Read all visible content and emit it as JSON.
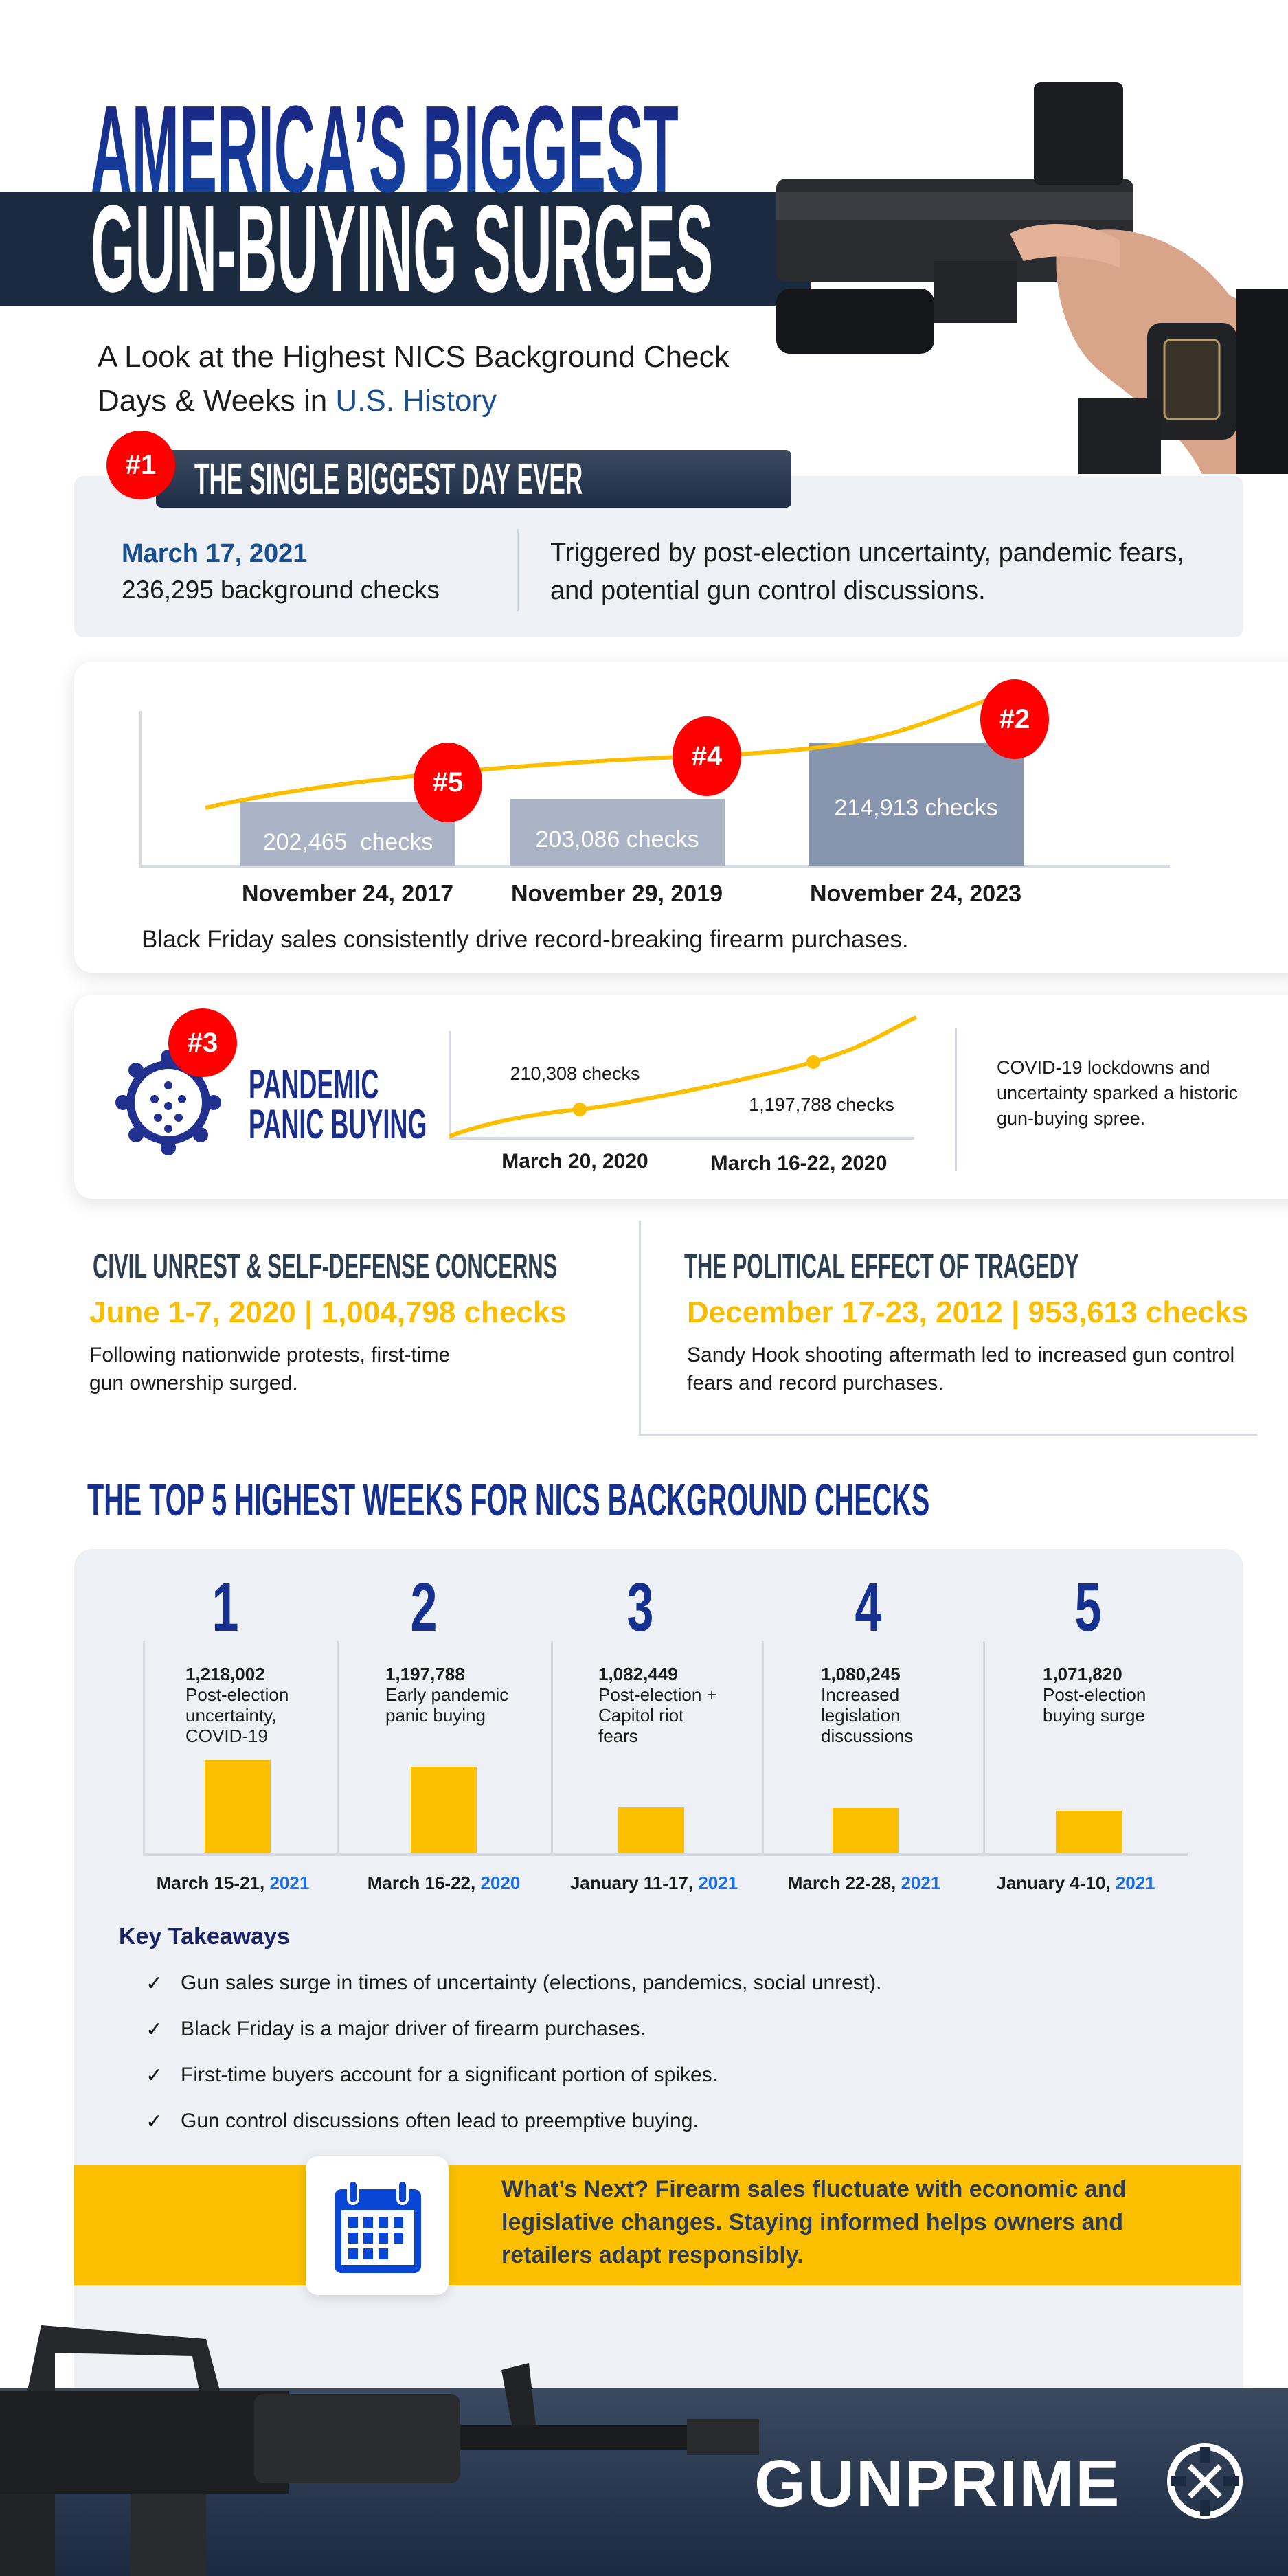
{
  "header": {
    "title_line1": "AMERICA’S BIGGEST",
    "title_line2": "GUN-BUYING SURGES",
    "subtitle_line1": "A Look at the Highest NICS Background Check",
    "subtitle_line2_prefix": "Days & Weeks in ",
    "subtitle_highlight": "U.S. History"
  },
  "biggest_day": {
    "rank": "#1",
    "heading": "THE SINGLE BIGGEST DAY EVER",
    "date": "March 17, 2021",
    "checks": "236,295 background checks",
    "description": "Triggered by post-election uncertainty, pandemic fears, and potential gun control discussions."
  },
  "black_friday": {
    "items": [
      {
        "rank": "#5",
        "label": "202,465  checks",
        "value": 202465,
        "date": "November 24, 2017"
      },
      {
        "rank": "#4",
        "label": "203,086 checks",
        "value": 203086,
        "date": "November 29, 2019"
      },
      {
        "rank": "#2",
        "label": "214,913 checks",
        "value": 214913,
        "date": "November 24, 2023"
      }
    ],
    "caption": "Black Friday sales consistently drive record-breaking firearm purchases."
  },
  "pandemic": {
    "rank": "#3",
    "icon": "virus-icon",
    "title_line1": "PANDEMIC",
    "title_line2": "PANIC BUYING",
    "points": [
      {
        "label": "210,308 checks",
        "date": "March 20, 2020"
      },
      {
        "label": "1,197,788 checks",
        "date": "March 16-22, 2020"
      }
    ],
    "description": "COVID-19 lockdowns and uncertainty sparked a historic gun-buying spree."
  },
  "civil_unrest": {
    "heading": "CIVIL UNREST & SELF-DEFENSE CONCERNS",
    "stat": "June 1-7, 2020 | 1,004,798 checks",
    "body": "Following nationwide protests, first-time gun ownership surged."
  },
  "tragedy": {
    "heading": "THE POLITICAL EFFECT OF TRAGEDY",
    "stat": "December 17-23, 2012 | 953,613 checks",
    "body": "Sandy Hook shooting aftermath led to increased gun control fears and record purchases."
  },
  "top5": {
    "heading": "THE TOP 5 HIGHEST WEEKS FOR NICS BACKGROUND CHECKS",
    "weeks": [
      {
        "rank": "1",
        "checks": "1,218,002",
        "count": 1218002,
        "reason": "Post-election uncertainty, COVID-19",
        "date": "March 15-21, ",
        "year": "2021"
      },
      {
        "rank": "2",
        "checks": "1,197,788",
        "count": 1197788,
        "reason": "Early pandemic panic buying",
        "date": "March 16-22, ",
        "year": "2020"
      },
      {
        "rank": "3",
        "checks": "1,082,449",
        "count": 1082449,
        "reason": "Post-election + Capitol riot fears",
        "date": "January 11-17, ",
        "year": "2021"
      },
      {
        "rank": "4",
        "checks": "1,080,245",
        "count": 1080245,
        "reason": "Increased legislation discussions",
        "date": "March 22-28, ",
        "year": "2021"
      },
      {
        "rank": "5",
        "checks": "1,071,820",
        "count": 1071820,
        "reason": "Post-election buying surge",
        "date": "January 4-10, ",
        "year": "2021"
      }
    ]
  },
  "takeaways": {
    "heading": "Key Takeaways",
    "items": [
      "Gun sales surge in times of uncertainty (elections, pandemics, social unrest).",
      "Black Friday is a major driver of firearm purchases.",
      "First-time buyers account for a significant portion of spikes.",
      "Gun control discussions often lead to preemptive buying."
    ]
  },
  "whats_next": {
    "icon": "calendar-icon",
    "text": "What’s Next? Firearm sales fluctuate with economic and legislative changes. Staying informed helps owners and retailers adapt responsibly."
  },
  "footer": {
    "brand": "GUNPRIME"
  },
  "colors": {
    "navy": "#15308f",
    "dark": "#1b2a3e",
    "red": "#ff0000",
    "yellow": "#fcc000",
    "blue": "#1a6fe8",
    "panel": "#edf0f5"
  }
}
